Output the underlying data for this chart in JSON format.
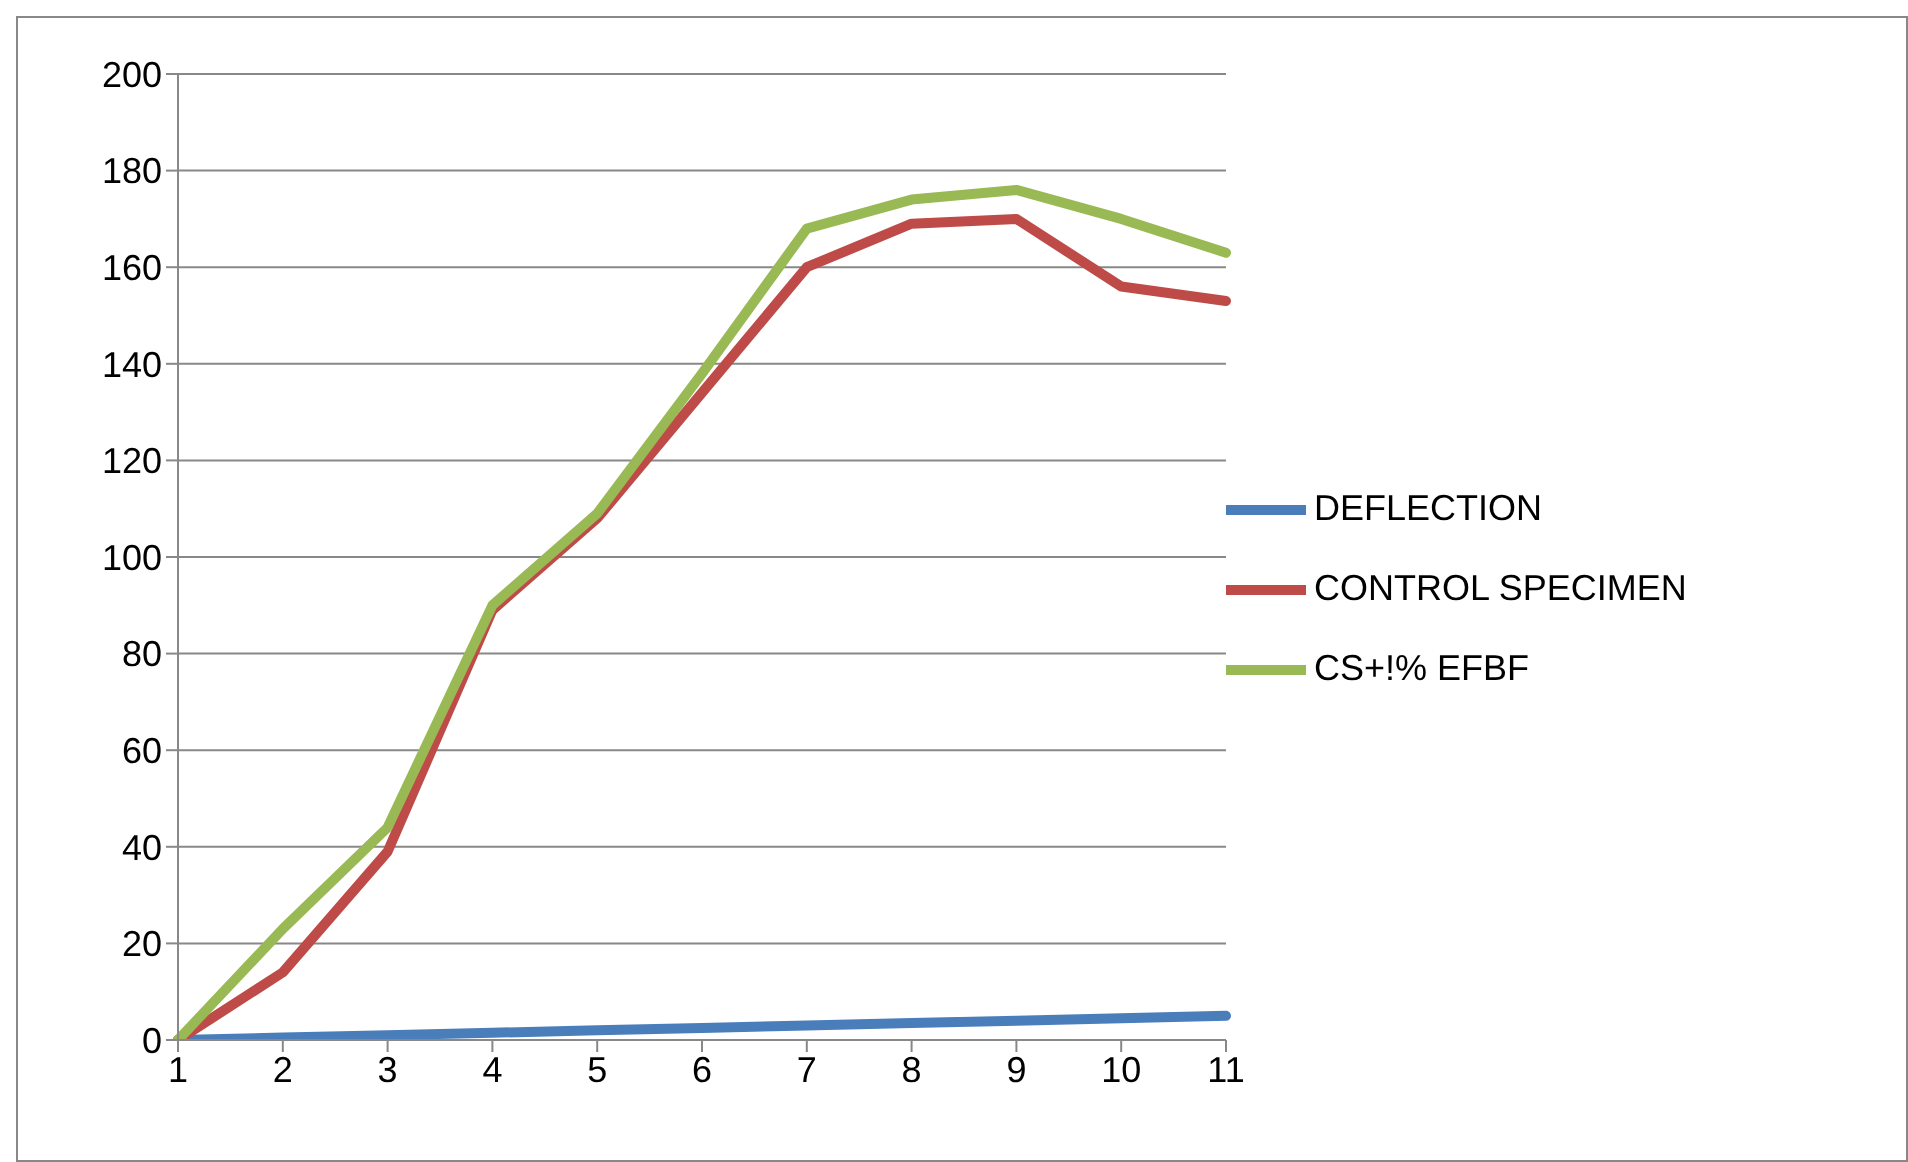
{
  "chart_data": {
    "type": "line",
    "categories": [
      "1",
      "2",
      "3",
      "4",
      "5",
      "6",
      "7",
      "8",
      "9",
      "10",
      "11"
    ],
    "series": [
      {
        "name": "DEFLECTION",
        "color": "#4a7ebb",
        "values": [
          0,
          0.5,
          1,
          1.5,
          2,
          2.5,
          3,
          3.5,
          4,
          4.5,
          5
        ]
      },
      {
        "name": "CONTROL SPECIMEN",
        "color": "#be4b48",
        "values": [
          0,
          14,
          39,
          89,
          108,
          134,
          160,
          169,
          170,
          156,
          153
        ]
      },
      {
        "name": "CS+!% EFBF",
        "color": "#98b954",
        "values": [
          0,
          23,
          44,
          90,
          109,
          138,
          168,
          174,
          176,
          170,
          163
        ]
      }
    ],
    "ylim": [
      0,
      200
    ],
    "yticks": [
      0,
      20,
      40,
      60,
      80,
      100,
      120,
      140,
      160,
      180,
      200
    ],
    "grid": "y",
    "legend": "right",
    "marker": "none",
    "line_style": "solid"
  }
}
